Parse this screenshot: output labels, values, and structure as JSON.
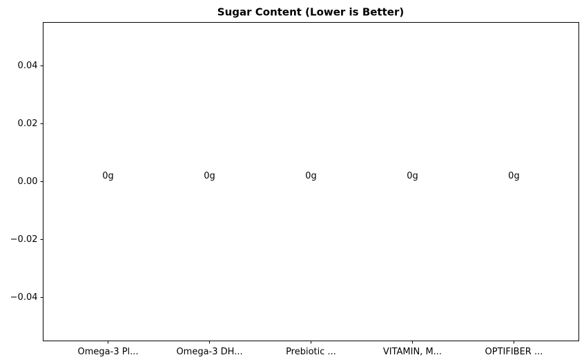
{
  "chart_data": {
    "type": "bar",
    "title": "Sugar Content (Lower is Better)",
    "categories": [
      "Omega-3 Pl...",
      "Omega-3 DH...",
      "Prebiotic ...",
      "VITAMIN, M...",
      "OPTIFIBER ..."
    ],
    "values": [
      0,
      0,
      0,
      0,
      0
    ],
    "value_labels": [
      "0g",
      "0g",
      "0g",
      "0g",
      "0g"
    ],
    "ylim": [
      -0.055,
      0.055
    ],
    "yticks": [
      {
        "value": -0.04,
        "label": "−0.04"
      },
      {
        "value": -0.02,
        "label": "−0.02"
      },
      {
        "value": 0,
        "label": "0.00"
      },
      0.02,
      0.04
    ],
    "grid": false
  }
}
